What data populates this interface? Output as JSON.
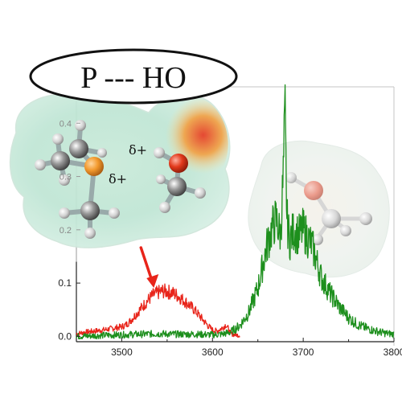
{
  "title": "P --- HO",
  "labels": {
    "delta_phosphorus": "δ+",
    "delta_hydrogen": "δ+"
  },
  "colors": {
    "complex_trace": "#e8241a",
    "monomer_trace": "#1d8f1d",
    "arrow": "#e8241a",
    "axis": "#222222"
  },
  "icons": {
    "complex_molecule": "trimethylphosphine-methanol-complex-illustration",
    "monomer_molecule": "methanol-monomer-illustration"
  },
  "chart_data": {
    "type": "line",
    "title": "",
    "xlabel": "",
    "ylabel": "",
    "xlim": [
      3450,
      3800
    ],
    "ylim": [
      -0.01,
      0.42
    ],
    "x_ticks": [
      3500,
      3600,
      3700,
      3800
    ],
    "x_tick_labels": [
      "3500",
      "3600",
      "3700",
      "3800"
    ],
    "y_ticks": [
      0.0,
      0.1,
      0.2,
      0.3,
      0.4
    ],
    "y_tick_labels": [
      "0.0",
      "0.1",
      "0.2",
      "0.3",
      "0.4"
    ],
    "arrow_at_x": 3530,
    "series": [
      {
        "color": "#e8241a",
        "x": [
          3450,
          3460,
          3470,
          3480,
          3490,
          3500,
          3505,
          3510,
          3515,
          3520,
          3525,
          3530,
          3535,
          3540,
          3545,
          3550,
          3555,
          3560,
          3565,
          3570,
          3575,
          3580,
          3585,
          3590,
          3595,
          3600,
          3605,
          3610,
          3615,
          3620,
          3625,
          3630
        ],
        "y": [
          0.005,
          0.008,
          0.01,
          0.012,
          0.015,
          0.018,
          0.022,
          0.03,
          0.04,
          0.05,
          0.06,
          0.07,
          0.078,
          0.082,
          0.085,
          0.084,
          0.082,
          0.078,
          0.072,
          0.065,
          0.058,
          0.05,
          0.04,
          0.03,
          0.02,
          0.012,
          0.01,
          0.015,
          0.022,
          0.005,
          0.003,
          0.002
        ]
      },
      {
        "color": "#1d8f1d",
        "x": [
          3450,
          3480,
          3500,
          3520,
          3540,
          3560,
          3580,
          3600,
          3610,
          3620,
          3630,
          3640,
          3650,
          3655,
          3660,
          3665,
          3670,
          3675,
          3678,
          3680,
          3682,
          3685,
          3690,
          3695,
          3700,
          3705,
          3710,
          3715,
          3720,
          3730,
          3740,
          3750,
          3760,
          3770,
          3780,
          3790,
          3800
        ],
        "y": [
          0.0,
          0.002,
          0.003,
          0.004,
          0.005,
          0.004,
          0.004,
          0.003,
          0.004,
          0.008,
          0.02,
          0.045,
          0.09,
          0.13,
          0.17,
          0.2,
          0.22,
          0.19,
          0.3,
          0.41,
          0.22,
          0.18,
          0.2,
          0.19,
          0.2,
          0.185,
          0.17,
          0.14,
          0.11,
          0.08,
          0.055,
          0.035,
          0.022,
          0.015,
          0.01,
          0.006,
          0.004
        ]
      }
    ]
  }
}
